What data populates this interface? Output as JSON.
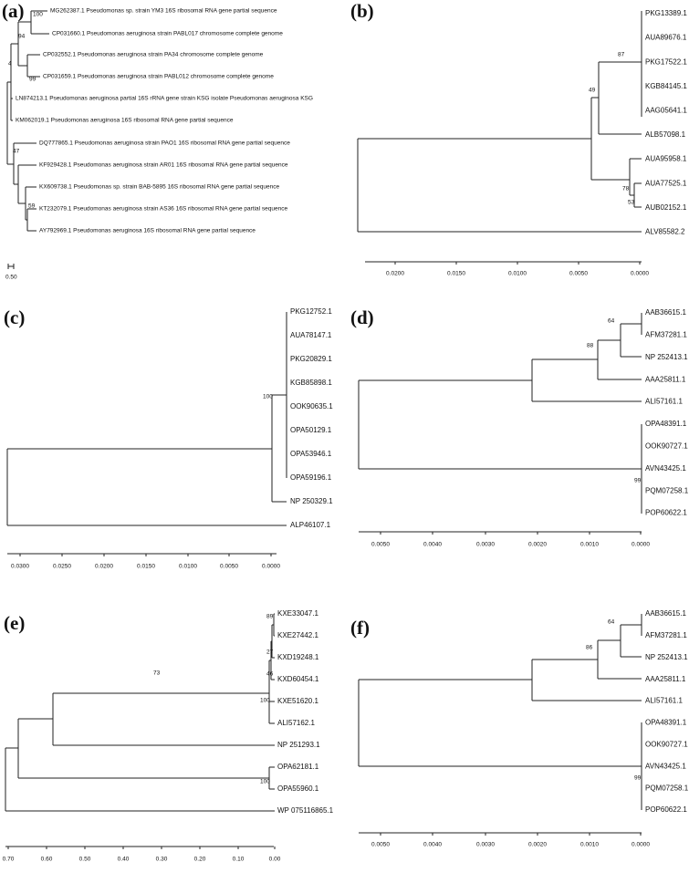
{
  "panels": [
    {
      "label": "(a)",
      "leaves": [
        "MG262387.1 Pseudomonas sp. strain YM3 16S ribosomal RNA gene partial sequence",
        "CP031660.1 Pseudomonas aeruginosa strain PABL017 chromosome complete genome",
        "CP032552.1 Pseudomonas aeruginosa strain PA34 chromosome complete genome",
        "CP031659.1 Pseudomonas aeruginosa strain PABL012 chromosome complete genome",
        "LN874213.1 Pseudomonas aeruginosa partial 16S rRNA gene strain KSG isolate Pseudomonas aeruginosa KSG",
        "KM062019.1 Pseudomonas aeruginosa 16S ribosomal RNA gene partial sequence",
        "DQ777865.1 Pseudomonas aeruginosa strain PAO1 16S ribosomal RNA gene partial sequence",
        "KF929428.1 Pseudomonas aeruginosa strain AR01 16S ribosomal RNA gene partial sequence",
        "KX609738.1 Pseudomonas sp. strain BAB-5895 16S ribosomal RNA gene partial sequence",
        "KT232079.1 Pseudomonas aeruginosa strain AS36 16S ribosomal RNA gene partial sequence",
        "AY792969.1 Pseudomonas aeruginosa 16S ribosomal RNA gene partial sequence"
      ],
      "bootstrap": [
        100,
        94,
        4,
        99,
        47,
        59
      ],
      "scale": [
        "0.50"
      ]
    },
    {
      "label": "(b)",
      "leaves": [
        "PKG13389.1",
        "AUA89676.1",
        "PKG17522.1",
        "KGB84145.1",
        "AAG05641.1",
        "ALB57098.1",
        "AUA95958.1",
        "AUA77525.1",
        "AUB02152.1",
        "ALV85582.2"
      ],
      "bootstrap": [
        87,
        49,
        78,
        53
      ],
      "scale": [
        "0.0200",
        "0.0150",
        "0.0100",
        "0.0050",
        "0.0000"
      ]
    },
    {
      "label": "(c)",
      "leaves": [
        "PKG12752.1",
        "AUA78147.1",
        "PKG20829.1",
        "KGB85898.1",
        "OOK90635.1",
        "OPA50129.1",
        "OPA53946.1",
        "OPA59196.1",
        "NP 250329.1",
        "ALP46107.1"
      ],
      "bootstrap": [
        100
      ],
      "scale": [
        "0.0300",
        "0.0250",
        "0.0200",
        "0.0150",
        "0.0100",
        "0.0050",
        "0.0000"
      ]
    },
    {
      "label": "(d)",
      "leaves": [
        "AAB36615.1",
        "AFM37281.1",
        "NP 252413.1",
        "AAA25811.1",
        "ALI57161.1",
        "OPA48391.1",
        "OOK90727.1",
        "AVN43425.1",
        "PQM07258.1",
        "POP60622.1"
      ],
      "bootstrap": [
        64,
        88,
        99
      ],
      "scale": [
        "0.0050",
        "0.0040",
        "0.0030",
        "0.0020",
        "0.0010",
        "0.0000"
      ]
    },
    {
      "label": "(e)",
      "leaves": [
        "KXE33047.1",
        "KXE27442.1",
        "KXD19248.1",
        "KXD60454.1",
        "KXE51620.1",
        "ALI57162.1",
        "NP 251293.1",
        "OPA62181.1",
        "OPA55960.1",
        "WP 075116865.1"
      ],
      "bootstrap": [
        89,
        27,
        46,
        100,
        73,
        100
      ],
      "scale": [
        "0.70",
        "0.60",
        "0.50",
        "0.40",
        "0.30",
        "0.20",
        "0.10",
        "0.00"
      ]
    },
    {
      "label": "(f)",
      "leaves": [
        "AAB36615.1",
        "AFM37281.1",
        "NP 252413.1",
        "AAA25811.1",
        "ALI57161.1",
        "OPA48391.1",
        "OOK90727.1",
        "AVN43425.1",
        "PQM07258.1",
        "POP60622.1"
      ],
      "bootstrap": [
        64,
        86,
        99
      ],
      "scale": [
        "0.0050",
        "0.0040",
        "0.0030",
        "0.0020",
        "0.0010",
        "0.0000"
      ]
    }
  ]
}
